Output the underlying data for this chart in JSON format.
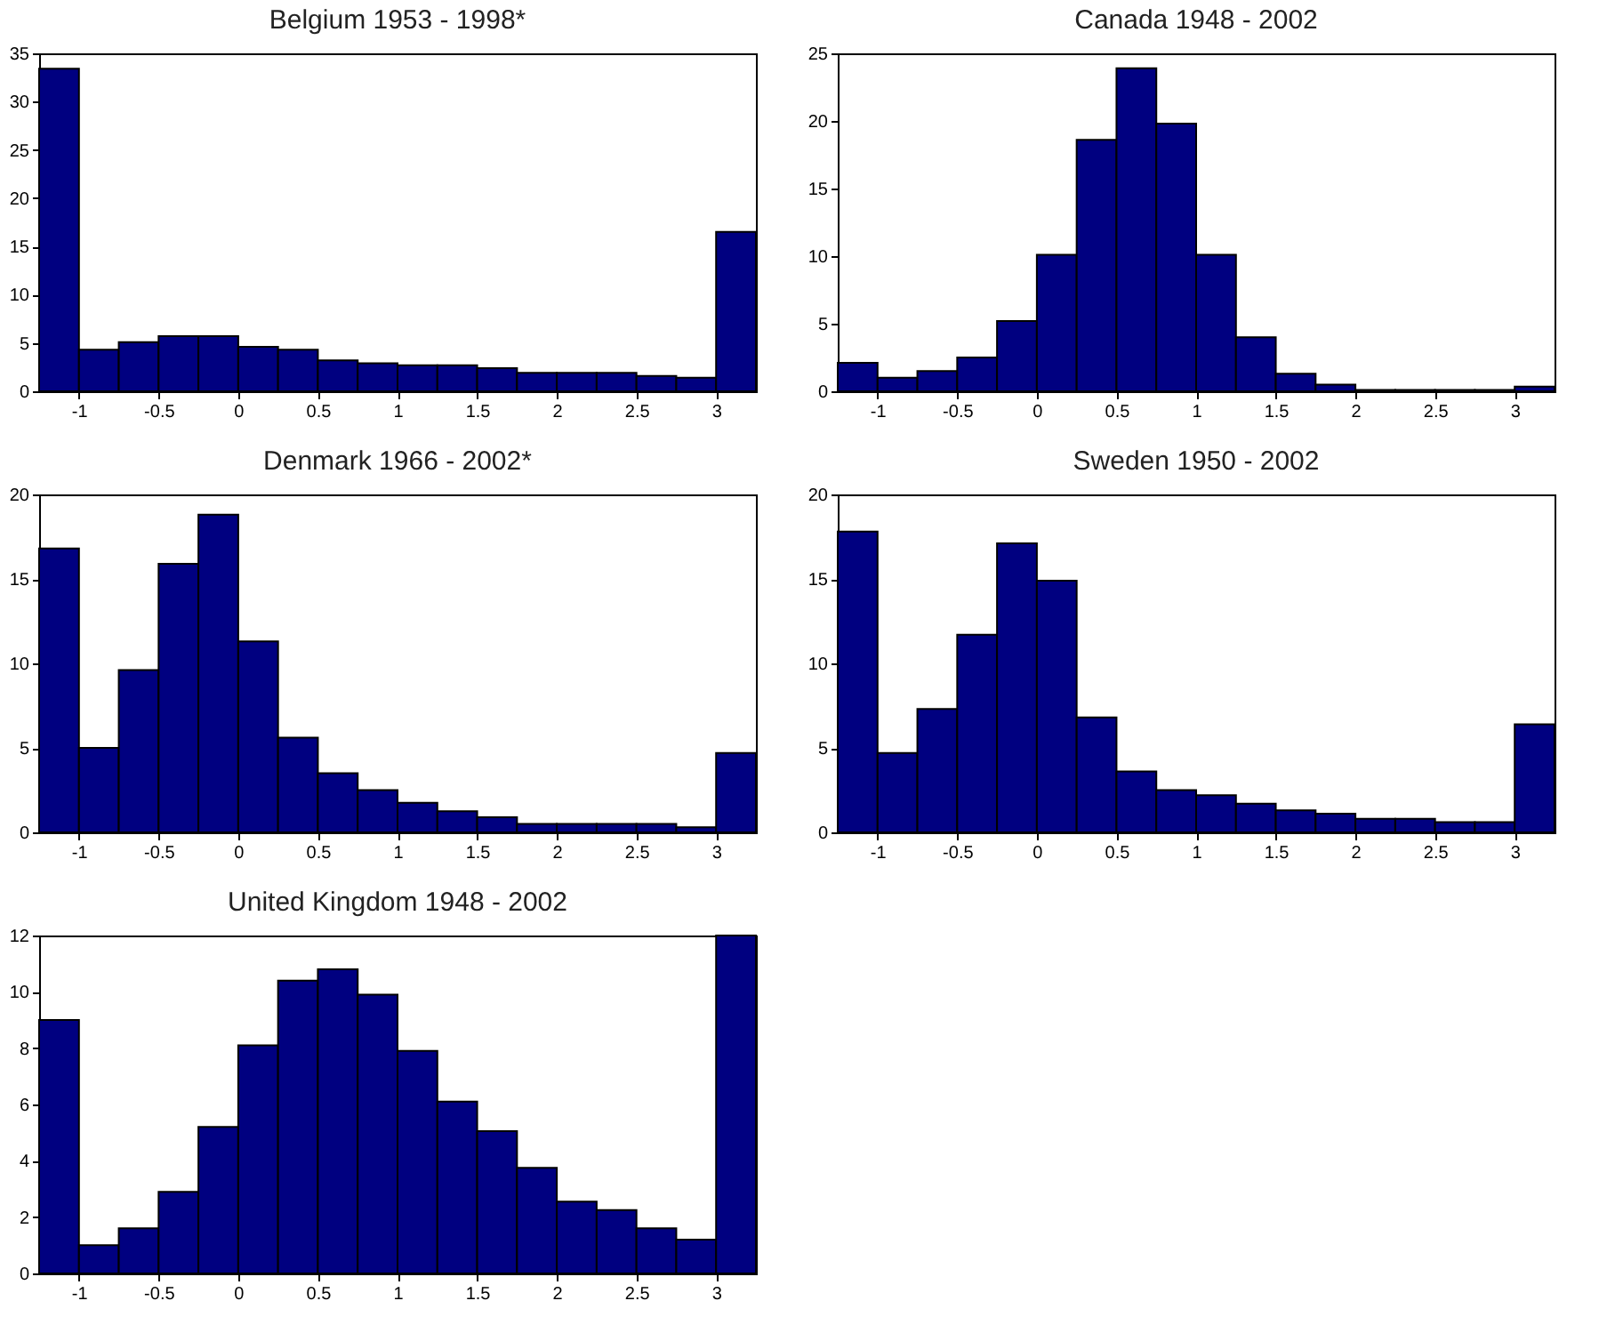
{
  "chart_data": [
    {
      "type": "histogram",
      "title": "Belgium 1953 - 1998*",
      "bins": [
        -1.25,
        -1,
        -0.75,
        -0.5,
        -0.25,
        0,
        0.25,
        0.5,
        0.75,
        1,
        1.25,
        1.5,
        1.75,
        2,
        2.25,
        2.5,
        2.75,
        3,
        3.25
      ],
      "values": [
        33.4,
        4.3,
        5.1,
        5.7,
        5.7,
        4.6,
        4.3,
        3.2,
        2.9,
        2.7,
        2.7,
        2.4,
        1.9,
        1.9,
        1.9,
        1.6,
        1.4,
        16.5
      ],
      "color": "#000080",
      "xlim": [
        -1.25,
        3.25
      ],
      "xticks": [
        -1,
        -0.5,
        0,
        0.5,
        1,
        1.5,
        2,
        2.5,
        3
      ],
      "ylim": [
        0,
        35
      ],
      "yticks": [
        0,
        5,
        10,
        15,
        20,
        25,
        30,
        35
      ],
      "grid": false
    },
    {
      "type": "histogram",
      "title": "Canada 1948 - 2002",
      "bins": [
        -1.25,
        -1,
        -0.75,
        -0.5,
        -0.25,
        0,
        0.25,
        0.5,
        0.75,
        1,
        1.25,
        1.5,
        1.75,
        2,
        2.25,
        2.5,
        2.75,
        3,
        3.25
      ],
      "values": [
        2.1,
        1,
        1.5,
        2.5,
        5.2,
        10.1,
        18.6,
        23.9,
        19.8,
        10.1,
        4,
        1.3,
        0.5,
        0.1,
        0.1,
        0.1,
        0.1,
        0.35
      ],
      "color": "#000080",
      "xlim": [
        -1.25,
        3.25
      ],
      "xticks": [
        -1,
        -0.5,
        0,
        0.5,
        1,
        1.5,
        2,
        2.5,
        3
      ],
      "ylim": [
        0,
        25
      ],
      "yticks": [
        0,
        5,
        10,
        15,
        20,
        25
      ],
      "grid": false
    },
    {
      "type": "histogram",
      "title": "Denmark 1966 - 2002*",
      "bins": [
        -1.25,
        -1,
        -0.75,
        -0.5,
        -0.25,
        0,
        0.25,
        0.5,
        0.75,
        1,
        1.25,
        1.5,
        1.75,
        2,
        2.25,
        2.5,
        2.75,
        3,
        3.25
      ],
      "values": [
        16.8,
        5,
        9.6,
        15.9,
        18.8,
        11.3,
        5.6,
        3.5,
        2.5,
        1.75,
        1.25,
        0.9,
        0.5,
        0.5,
        0.5,
        0.5,
        0.3,
        4.7
      ],
      "color": "#000080",
      "xlim": [
        -1.25,
        3.25
      ],
      "xticks": [
        -1,
        -0.5,
        0,
        0.5,
        1,
        1.5,
        2,
        2.5,
        3
      ],
      "ylim": [
        0,
        20
      ],
      "yticks": [
        0,
        5,
        10,
        15,
        20
      ],
      "grid": false
    },
    {
      "type": "histogram",
      "title": "Sweden 1950 - 2002",
      "bins": [
        -1.25,
        -1,
        -0.75,
        -0.5,
        -0.25,
        0,
        0.25,
        0.5,
        0.75,
        1,
        1.25,
        1.5,
        1.75,
        2,
        2.25,
        2.5,
        2.75,
        3,
        3.25
      ],
      "values": [
        17.8,
        4.7,
        7.3,
        11.7,
        17.1,
        14.9,
        6.8,
        3.6,
        2.5,
        2.2,
        1.7,
        1.3,
        1.1,
        0.8,
        0.8,
        0.6,
        0.6,
        6.4
      ],
      "color": "#000080",
      "xlim": [
        -1.25,
        3.25
      ],
      "xticks": [
        -1,
        -0.5,
        0,
        0.5,
        1,
        1.5,
        2,
        2.5,
        3
      ],
      "ylim": [
        0,
        20
      ],
      "yticks": [
        0,
        5,
        10,
        15,
        20
      ],
      "grid": false
    },
    {
      "type": "histogram",
      "title": "United Kingdom 1948 - 2002",
      "bins": [
        -1.25,
        -1,
        -0.75,
        -0.5,
        -0.25,
        0,
        0.25,
        0.5,
        0.75,
        1,
        1.25,
        1.5,
        1.75,
        2,
        2.25,
        2.5,
        2.75,
        3,
        3.25
      ],
      "values": [
        9,
        1,
        1.6,
        2.9,
        5.2,
        8.1,
        10.4,
        10.8,
        9.9,
        7.9,
        6.1,
        5.05,
        3.75,
        2.55,
        2.25,
        1.6,
        1.2,
        12
      ],
      "color": "#000080",
      "xlim": [
        -1.25,
        3.25
      ],
      "xticks": [
        -1,
        -0.5,
        0,
        0.5,
        1,
        1.5,
        2,
        2.5,
        3
      ],
      "ylim": [
        0,
        12
      ],
      "yticks": [
        0,
        2,
        4,
        6,
        8,
        10,
        12
      ],
      "grid": false
    }
  ]
}
